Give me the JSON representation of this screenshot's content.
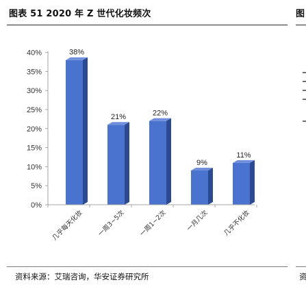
{
  "header": {
    "title": "图表 51 2020 年 Z 世代化妆频次",
    "next_title_fragment": "图"
  },
  "footer": {
    "source": "资料来源：艾瑞咨询，华安证券研究所",
    "next_source_fragment": "资"
  },
  "colors": {
    "bar_front": "#4a72cf",
    "bar_side": "#2c4a92",
    "bar_top": "#6f8fdc",
    "axis": "#a6a6a6"
  },
  "chart_data": {
    "type": "bar",
    "title": "2020 年 Z 世代化妆频次",
    "categories": [
      "几乎每天化妆",
      "一周3~5次",
      "一周1~2次",
      "一月几次",
      "几乎不化妆"
    ],
    "values": [
      38,
      21,
      22,
      9,
      11
    ],
    "data_labels": [
      "38%",
      "21%",
      "22%",
      "9%",
      "11%"
    ],
    "y_ticks": [
      "0%",
      "5%",
      "10%",
      "15%",
      "20%",
      "25%",
      "30%",
      "35%",
      "40%"
    ],
    "ylim": [
      0,
      40
    ],
    "xlabel": "",
    "ylabel": "",
    "grid": false,
    "legend": "none"
  }
}
